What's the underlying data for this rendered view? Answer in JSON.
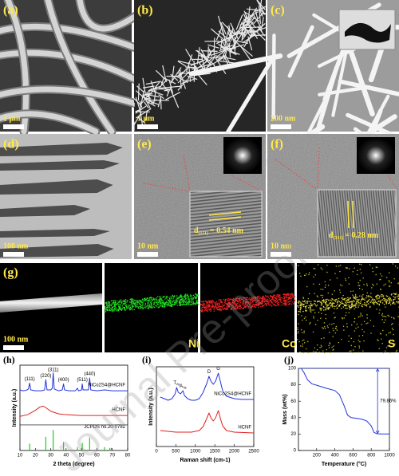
{
  "panels": [
    {
      "label": "(a)",
      "scale": "1 μm"
    },
    {
      "label": "(b)",
      "scale": "1 μm"
    },
    {
      "label": "(c)",
      "scale": "200 nm"
    },
    {
      "label": "(d)",
      "scale": "100 nm"
    },
    {
      "label": "(e)",
      "scale": "10 nm",
      "spacing": {
        "d": "d",
        "sub": "(111)",
        "text": "= 0.54 nm"
      }
    },
    {
      "label": "(f)",
      "scale": "10 nm",
      "spacing": {
        "d": "d",
        "sub": "(311)",
        "text": "= 0.28 nm"
      }
    },
    {
      "label": "(g)",
      "scale": "100 nm",
      "elements": [
        "Ni",
        "Co",
        "S"
      ]
    }
  ],
  "watermark": "Journal Pre-proof",
  "chart_data": [
    {
      "type": "line",
      "label": "(h)",
      "xlabel": "2 theta (degree)",
      "ylabel": "Intensity (a.u.)",
      "xlim": [
        10,
        80
      ],
      "xticks": [
        10,
        20,
        30,
        40,
        50,
        60,
        70,
        80
      ],
      "ylim": [
        0,
        100
      ],
      "series": [
        {
          "name": "NiCo2S4@HCNF",
          "color": "#2233dd",
          "x": [
            10,
            12,
            14,
            15.5,
            16.3,
            17,
            20,
            24,
            26,
            26.8,
            27.6,
            30,
            31,
            31.6,
            32.3,
            35,
            37.5,
            38.3,
            39,
            42,
            46,
            47.4,
            48,
            50,
            50.5,
            51,
            54.5,
            55.3,
            56,
            60,
            65,
            70,
            75,
            80
          ],
          "values": [
            71,
            70,
            70.5,
            72,
            79,
            71,
            70,
            70,
            71,
            83,
            71,
            71,
            73,
            91,
            72,
            70,
            71,
            78,
            71,
            70,
            70,
            73,
            70,
            71,
            78,
            71,
            71,
            85,
            71,
            70,
            71,
            70,
            70,
            70
          ]
        },
        {
          "name": "HCNF",
          "color": "#e02020",
          "x": [
            10,
            15,
            20,
            23,
            25,
            27,
            30,
            35,
            40,
            50,
            60,
            70,
            80
          ],
          "values": [
            40,
            42,
            47,
            51,
            52,
            50,
            46,
            43,
            42,
            41,
            41,
            41,
            41
          ]
        },
        {
          "name": "JCPDS no.20-0782",
          "color": "#22cc22",
          "style": "sticks",
          "x": [
            16.3,
            26.8,
            31.6,
            38.3,
            47.4,
            50.5,
            55.3,
            64.9,
            68.4,
            69.4
          ],
          "values": [
            8,
            16,
            24,
            10,
            4,
            9,
            15,
            4,
            3,
            3
          ]
        }
      ],
      "annotations": [
        {
          "text": "(111)",
          "x": 16.3,
          "y": 84
        },
        {
          "text": "(220)",
          "x": 26.8,
          "y": 88
        },
        {
          "text": "(311)",
          "x": 31.6,
          "y": 95
        },
        {
          "text": "(400)",
          "x": 38.3,
          "y": 83
        },
        {
          "text": "(511)",
          "x": 50.5,
          "y": 83
        },
        {
          "text": "(440)",
          "x": 55.3,
          "y": 90
        }
      ]
    },
    {
      "type": "line",
      "label": "(i)",
      "xlabel": "Raman shift (cm-1)",
      "ylabel": "Intensity (a.u.)",
      "xlim": [
        0,
        2500
      ],
      "xticks": [
        0,
        500,
        1000,
        1500,
        2000,
        2500
      ],
      "ylim": [
        0,
        100
      ],
      "series": [
        {
          "name": "NiCo2S4@HCNF",
          "color": "#2233dd",
          "x": [
            100,
            200,
            300,
            400,
            480,
            520,
            560,
            620,
            682,
            720,
            800,
            900,
            1000,
            1100,
            1200,
            1300,
            1350,
            1400,
            1460,
            1520,
            1590,
            1650,
            1700,
            1800,
            2000,
            2200,
            2500
          ],
          "values": [
            62,
            60,
            58,
            60,
            66,
            74,
            68,
            66,
            70,
            64,
            60,
            58,
            58,
            60,
            68,
            80,
            88,
            82,
            78,
            82,
            92,
            80,
            70,
            63,
            60,
            59,
            59
          ]
        },
        {
          "name": "HCNF",
          "color": "#e02020",
          "x": [
            100,
            300,
            500,
            700,
            900,
            1100,
            1200,
            1300,
            1350,
            1400,
            1460,
            1520,
            1590,
            1650,
            1700,
            1800,
            2000,
            2500
          ],
          "values": [
            20,
            19,
            18,
            18,
            18,
            20,
            25,
            36,
            42,
            36,
            32,
            36,
            45,
            34,
            26,
            20,
            18,
            17
          ]
        }
      ],
      "annotations": [
        {
          "text": "D",
          "x": 1350,
          "y": 94
        },
        {
          "text": "G",
          "x": 1590,
          "y": 98
        },
        {
          "text": "T",
          "sub": "2g",
          "x": 520,
          "y": 80
        },
        {
          "text": "A",
          "sub": "1g",
          "x": 682,
          "y": 76
        }
      ]
    },
    {
      "type": "line",
      "label": "(j)",
      "xlabel": "Temperature (°C)",
      "ylabel": "Mass (wt%)",
      "xlim": [
        0,
        1000
      ],
      "xticks": [
        200,
        400,
        600,
        800,
        1000
      ],
      "ylim": [
        0,
        100
      ],
      "yticks": [
        0,
        20,
        40,
        60,
        80,
        100
      ],
      "series": [
        {
          "name": "NiCo2S4@HCNF",
          "color": "#2233dd",
          "show_name": false,
          "x": [
            30,
            60,
            100,
            150,
            200,
            300,
            400,
            450,
            500,
            540,
            580,
            650,
            700,
            750,
            800,
            830,
            860,
            900,
            1000
          ],
          "values": [
            100,
            95,
            86,
            81,
            79.5,
            76,
            73,
            68,
            55,
            43,
            40,
            39,
            38,
            36,
            30,
            22,
            20.5,
            20.2,
            20.14
          ]
        }
      ],
      "drop": {
        "text": "79.86%",
        "from": 100,
        "to": 20.14,
        "x": 870
      }
    }
  ]
}
